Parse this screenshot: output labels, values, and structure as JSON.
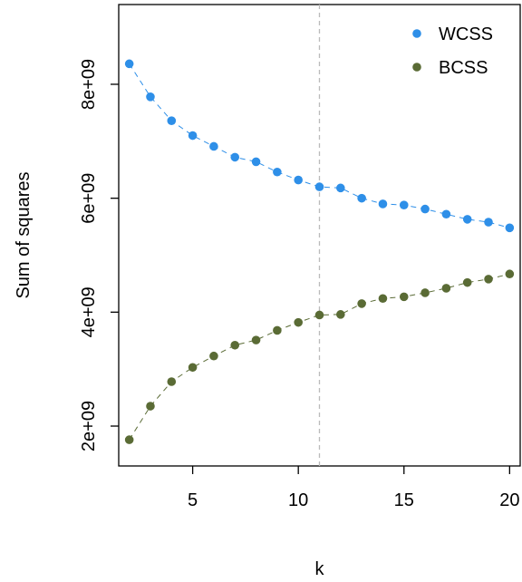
{
  "chart_data": {
    "type": "scatter",
    "title": "",
    "xlabel": "k",
    "ylabel": "Sum of squares",
    "xlim": [
      1.5,
      20.5
    ],
    "ylim": [
      1300000000,
      9400000000
    ],
    "x_ticks": [
      5,
      10,
      15,
      20
    ],
    "x_tick_labels": [
      "5",
      "10",
      "15",
      "20"
    ],
    "y_ticks": [
      2000000000,
      4000000000,
      6000000000,
      8000000000
    ],
    "y_tick_labels": [
      "2e+09",
      "4e+09",
      "6e+09",
      "8e+09"
    ],
    "grid": false,
    "legend_position": "top-right",
    "vline": {
      "x": 11,
      "color": "#bbbbbb",
      "style": "dashed"
    },
    "x": [
      2,
      3,
      4,
      5,
      6,
      7,
      8,
      9,
      10,
      11,
      12,
      13,
      14,
      15,
      16,
      17,
      18,
      19,
      20
    ],
    "series": [
      {
        "name": "WCSS",
        "color": "#2e8fe8",
        "values": [
          8360000000,
          7780000000,
          7360000000,
          7100000000,
          6910000000,
          6720000000,
          6640000000,
          6460000000,
          6320000000,
          6200000000,
          6180000000,
          6000000000,
          5900000000,
          5880000000,
          5810000000,
          5720000000,
          5630000000,
          5580000000,
          5480000000
        ]
      },
      {
        "name": "BCSS",
        "color": "#5a6b35",
        "values": [
          1760000000,
          2350000000,
          2780000000,
          3030000000,
          3230000000,
          3420000000,
          3510000000,
          3680000000,
          3820000000,
          3950000000,
          3960000000,
          4150000000,
          4240000000,
          4270000000,
          4340000000,
          4420000000,
          4520000000,
          4580000000,
          4670000000
        ]
      }
    ]
  }
}
